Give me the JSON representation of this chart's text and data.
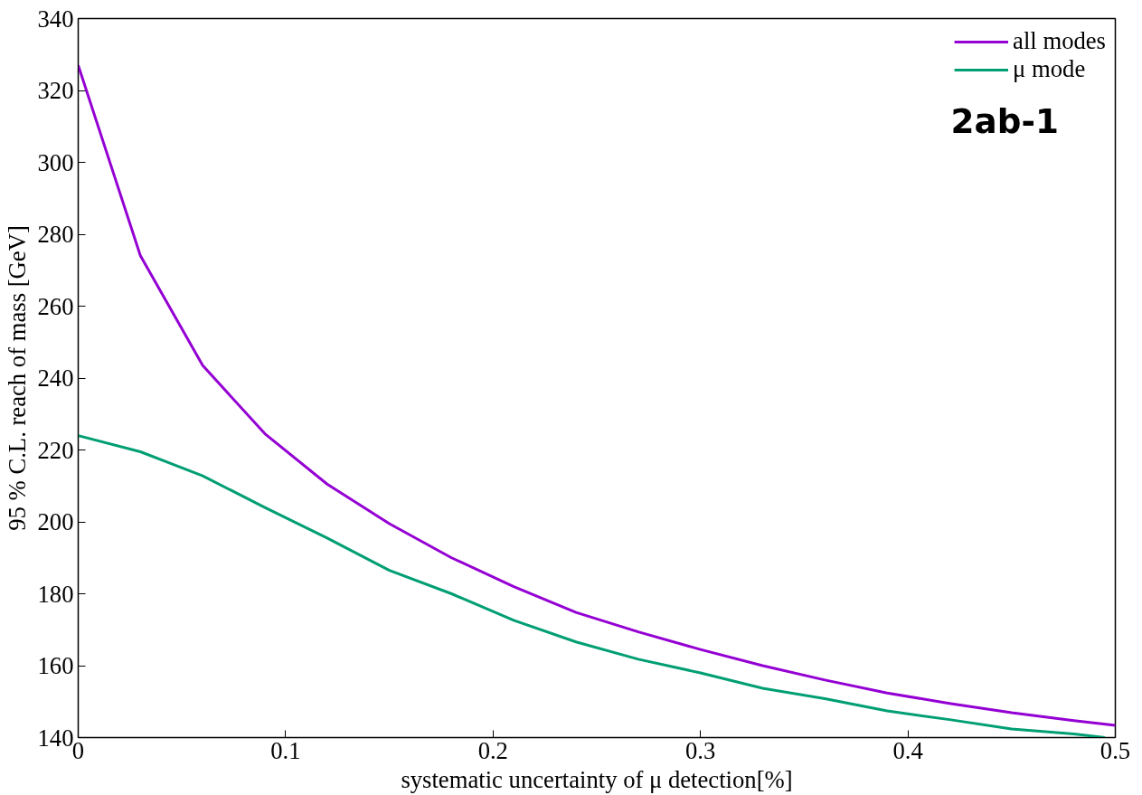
{
  "chart_data": {
    "type": "line",
    "xlabel": "systematic uncertainty of μ detection[%]",
    "ylabel": "95 % C.L. reach of mass [GeV]",
    "x": [
      0,
      0.03,
      0.06,
      0.09,
      0.12,
      0.15,
      0.18,
      0.21,
      0.24,
      0.27,
      0.3,
      0.33,
      0.36,
      0.39,
      0.42,
      0.45,
      0.48,
      0.5
    ],
    "series": [
      {
        "name": "all modes",
        "color": "#9400d3",
        "values": [
          327,
          274,
          243.5,
          224.5,
          210.5,
          199.5,
          190,
          182,
          174.8,
          169.4,
          164.5,
          160,
          156,
          152.4,
          149.5,
          146.9,
          144.7,
          143.4
        ]
      },
      {
        "name": "μ mode",
        "color": "#009e73",
        "x": [
          0,
          0.03,
          0.06,
          0.09,
          0.12,
          0.15,
          0.18,
          0.21,
          0.24,
          0.27,
          0.3,
          0.33,
          0.36,
          0.39,
          0.42,
          0.45,
          0.48,
          0.495
        ],
        "values": [
          224,
          219.5,
          212.8,
          204,
          195.5,
          186.5,
          180,
          172.6,
          166.6,
          161.8,
          158,
          153.7,
          150.8,
          147.4,
          145,
          142.4,
          141,
          140
        ]
      }
    ],
    "xlim": [
      0,
      0.5
    ],
    "ylim": [
      140,
      340
    ],
    "xticks": [
      0,
      0.1,
      0.2,
      0.3,
      0.4,
      0.5
    ],
    "yticks": [
      140,
      160,
      180,
      200,
      220,
      240,
      260,
      280,
      300,
      320,
      340
    ],
    "annotations": [
      "2ab-1"
    ],
    "grid": false,
    "legend": "top right",
    "marker": "none",
    "line_style": "solid"
  }
}
